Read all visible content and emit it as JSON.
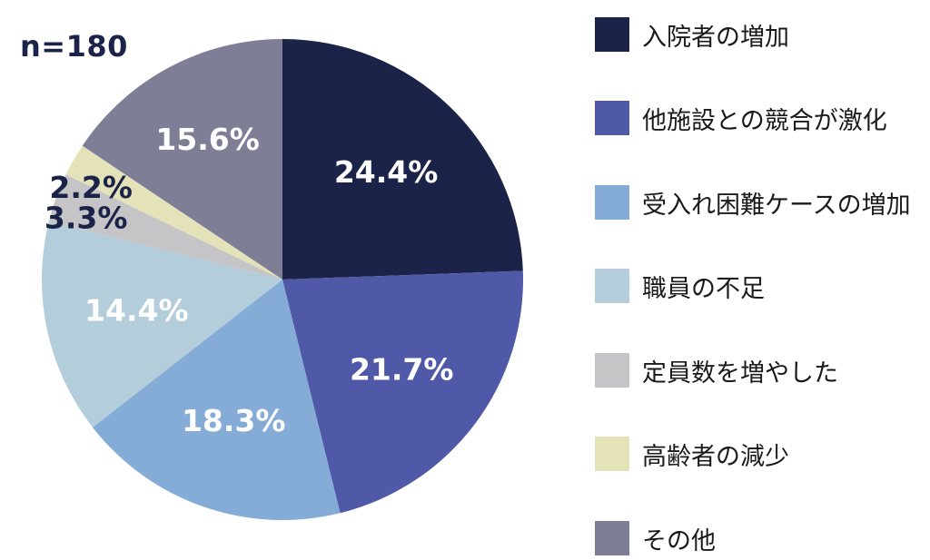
{
  "n_label": "n=180",
  "chart_data": {
    "type": "pie",
    "title": "",
    "start_angle_deg": 0,
    "direction": "clockwise",
    "slices": [
      {
        "label": "入院者の増加",
        "value": 24.4,
        "display": "24.4%",
        "color": "#1b2348",
        "text_color": "#ffffff"
      },
      {
        "label": "他施設との競合が激化",
        "value": 21.7,
        "display": "21.7%",
        "color": "#5059a7",
        "text_color": "#ffffff"
      },
      {
        "label": "受入れ困難ケースの増加",
        "value": 18.3,
        "display": "18.3%",
        "color": "#85abd7",
        "text_color": "#ffffff"
      },
      {
        "label": "職員の不足",
        "value": 14.4,
        "display": "14.4%",
        "color": "#b4cddb",
        "text_color": "#ffffff"
      },
      {
        "label": "定員数を増やした",
        "value": 3.3,
        "display": "3.3%",
        "color": "#c5c5c7",
        "text_color": "#1b2348"
      },
      {
        "label": "高齢者の減少",
        "value": 2.2,
        "display": "2.2%",
        "color": "#e4e2b9",
        "text_color": "#1b2348"
      },
      {
        "label": "その他",
        "value": 15.6,
        "display": "15.6%",
        "color": "#7e7e96",
        "text_color": "#ffffff"
      }
    ],
    "legend_position": "right"
  }
}
